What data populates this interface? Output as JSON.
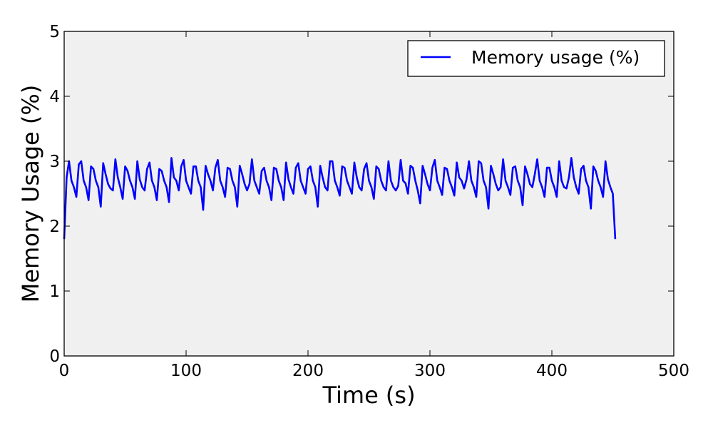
{
  "chart_data": {
    "type": "line",
    "title": "",
    "xlabel": "Time (s)",
    "ylabel": "Memory Usage (%)",
    "xlim": [
      0,
      500
    ],
    "ylim": [
      0,
      5
    ],
    "xticks": [
      "0",
      "100",
      "200",
      "300",
      "400",
      "500"
    ],
    "yticks": [
      "0",
      "1",
      "2",
      "3",
      "4",
      "5"
    ],
    "grid": false,
    "legend_position": "top-right",
    "background": "#f0f0f0",
    "series": [
      {
        "name": "Memory usage (%)",
        "color": "#0000ff",
        "x": [
          0,
          2,
          4,
          6,
          8,
          10,
          12,
          14,
          16,
          18,
          20,
          22,
          24,
          26,
          28,
          30,
          32,
          34,
          36,
          38,
          40,
          42,
          44,
          46,
          48,
          50,
          52,
          54,
          56,
          58,
          60,
          62,
          64,
          66,
          68,
          70,
          72,
          74,
          76,
          78,
          80,
          82,
          84,
          86,
          88,
          90,
          92,
          94,
          96,
          98,
          100,
          102,
          104,
          106,
          108,
          110,
          112,
          114,
          116,
          118,
          120,
          122,
          124,
          126,
          128,
          130,
          132,
          134,
          136,
          138,
          140,
          142,
          144,
          146,
          148,
          150,
          152,
          154,
          156,
          158,
          160,
          162,
          164,
          166,
          168,
          170,
          172,
          174,
          176,
          178,
          180,
          182,
          184,
          186,
          188,
          190,
          192,
          194,
          196,
          198,
          200,
          202,
          204,
          206,
          208,
          210,
          212,
          214,
          216,
          218,
          220,
          222,
          224,
          226,
          228,
          230,
          232,
          234,
          236,
          238,
          240,
          242,
          244,
          246,
          248,
          250,
          252,
          254,
          256,
          258,
          260,
          262,
          264,
          266,
          268,
          270,
          272,
          274,
          276,
          278,
          280,
          282,
          284,
          286,
          288,
          290,
          292,
          294,
          296,
          298,
          300,
          302,
          304,
          306,
          308,
          310,
          312,
          314,
          316,
          318,
          320,
          322,
          324,
          326,
          328,
          330,
          332,
          334,
          336,
          338,
          340,
          342,
          344,
          346,
          348,
          350,
          352,
          354,
          356,
          358,
          360,
          362,
          364,
          366,
          368,
          370,
          372,
          374,
          376,
          378,
          380,
          382,
          384,
          386,
          388,
          390,
          392,
          394,
          396,
          398,
          400,
          402,
          404,
          406,
          408,
          410,
          412,
          414,
          416,
          418,
          420,
          422,
          424,
          426,
          428,
          430,
          432,
          434,
          436,
          438,
          440,
          442,
          444,
          446,
          448,
          450,
          452
        ],
        "values": [
          1.8,
          2.75,
          3.0,
          2.7,
          2.6,
          2.45,
          2.95,
          3.0,
          2.7,
          2.6,
          2.4,
          2.92,
          2.88,
          2.7,
          2.6,
          2.3,
          2.97,
          2.8,
          2.65,
          2.58,
          2.55,
          3.03,
          2.75,
          2.6,
          2.42,
          2.92,
          2.85,
          2.7,
          2.6,
          2.42,
          3.0,
          2.72,
          2.6,
          2.55,
          2.88,
          2.98,
          2.7,
          2.6,
          2.4,
          2.88,
          2.85,
          2.7,
          2.6,
          2.37,
          3.05,
          2.75,
          2.7,
          2.55,
          2.92,
          3.02,
          2.7,
          2.6,
          2.5,
          2.92,
          2.92,
          2.7,
          2.6,
          2.25,
          2.93,
          2.8,
          2.7,
          2.55,
          2.9,
          3.02,
          2.7,
          2.6,
          2.45,
          2.9,
          2.88,
          2.7,
          2.6,
          2.3,
          2.93,
          2.8,
          2.65,
          2.55,
          2.65,
          3.03,
          2.7,
          2.6,
          2.5,
          2.85,
          2.9,
          2.7,
          2.6,
          2.4,
          2.9,
          2.88,
          2.7,
          2.6,
          2.4,
          2.98,
          2.72,
          2.6,
          2.5,
          2.9,
          2.97,
          2.7,
          2.6,
          2.5,
          2.88,
          2.92,
          2.7,
          2.6,
          2.3,
          2.93,
          2.75,
          2.6,
          2.55,
          3.0,
          3.0,
          2.7,
          2.6,
          2.47,
          2.92,
          2.9,
          2.7,
          2.6,
          2.5,
          2.98,
          2.75,
          2.6,
          2.55,
          2.88,
          2.97,
          2.7,
          2.6,
          2.42,
          2.92,
          2.88,
          2.7,
          2.6,
          2.55,
          3.0,
          2.7,
          2.6,
          2.55,
          2.62,
          3.02,
          2.7,
          2.66,
          2.5,
          2.93,
          2.9,
          2.7,
          2.55,
          2.35,
          2.93,
          2.8,
          2.65,
          2.55,
          2.9,
          3.02,
          2.7,
          2.6,
          2.48,
          2.9,
          2.88,
          2.7,
          2.6,
          2.47,
          2.98,
          2.75,
          2.7,
          2.58,
          2.72,
          3.0,
          2.7,
          2.6,
          2.45,
          3.0,
          2.97,
          2.7,
          2.6,
          2.27,
          2.93,
          2.8,
          2.65,
          2.55,
          2.6,
          3.03,
          2.7,
          2.6,
          2.48,
          2.9,
          2.92,
          2.7,
          2.6,
          2.32,
          2.92,
          2.8,
          2.65,
          2.6,
          2.8,
          3.03,
          2.7,
          2.6,
          2.45,
          2.9,
          2.9,
          2.7,
          2.6,
          2.45,
          3.0,
          2.7,
          2.6,
          2.58,
          2.75,
          3.05,
          2.75,
          2.6,
          2.5,
          2.88,
          2.93,
          2.7,
          2.6,
          2.27,
          2.92,
          2.85,
          2.7,
          2.6,
          2.45,
          3.0,
          2.72,
          2.6,
          2.5,
          1.8
        ]
      }
    ]
  }
}
